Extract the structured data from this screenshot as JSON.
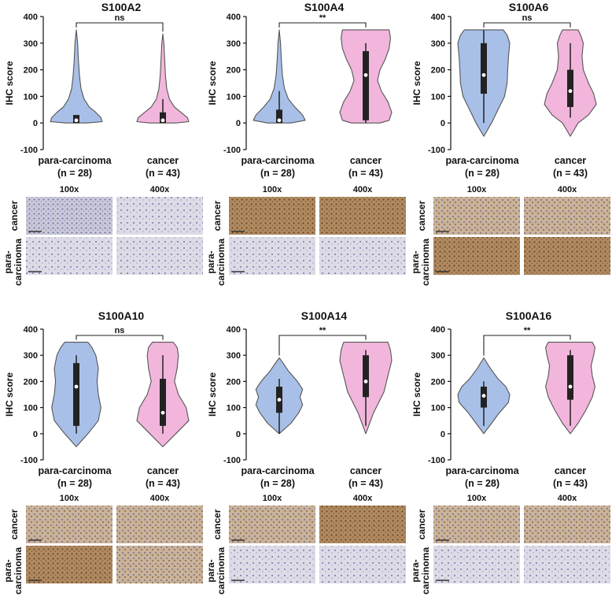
{
  "colors": {
    "para_fill": "#a8c0e8",
    "cancer_fill": "#f2b6dc",
    "outline": "#555555",
    "box": "#222222",
    "median": "#ffffff"
  },
  "image_labels": {
    "col_100": "100x",
    "col_400": "400x",
    "row_cancer": "cancer",
    "row_para_1": "para-",
    "row_para_2": "carcinoma"
  },
  "chart_data": [
    {
      "type": "violin",
      "title": "S100A2",
      "significance": "ns",
      "ylabel": "IHC score",
      "ylim": [
        -100,
        400
      ],
      "yticks": [
        -100,
        0,
        100,
        200,
        300,
        400
      ],
      "categories": [
        "para-carcinoma",
        "cancer"
      ],
      "category_n": [
        "(n = 28)",
        "(n = 43)"
      ],
      "violins": [
        {
          "name": "para-carcinoma",
          "min": 0,
          "max": 350,
          "q1": 0,
          "median": 10,
          "q3": 30,
          "whisker_low": 0,
          "whisker_high": 30,
          "density": [
            [
              0,
              0.4
            ],
            [
              5,
              1.0
            ],
            [
              20,
              0.95
            ],
            [
              40,
              0.75
            ],
            [
              60,
              0.5
            ],
            [
              90,
              0.3
            ],
            [
              130,
              0.18
            ],
            [
              180,
              0.12
            ],
            [
              240,
              0.08
            ],
            [
              300,
              0.05
            ],
            [
              350,
              0.0
            ]
          ]
        },
        {
          "name": "cancer",
          "min": 0,
          "max": 335,
          "q1": 0,
          "median": 10,
          "q3": 40,
          "whisker_low": 0,
          "whisker_high": 90,
          "density": [
            [
              0,
              0.5
            ],
            [
              5,
              1.0
            ],
            [
              20,
              0.95
            ],
            [
              40,
              0.7
            ],
            [
              60,
              0.45
            ],
            [
              90,
              0.25
            ],
            [
              130,
              0.15
            ],
            [
              180,
              0.1
            ],
            [
              240,
              0.07
            ],
            [
              300,
              0.04
            ],
            [
              335,
              0.0
            ]
          ]
        }
      ]
    },
    {
      "type": "violin",
      "title": "S100A4",
      "significance": "**",
      "ylabel": "IHC score",
      "ylim": [
        -100,
        400
      ],
      "yticks": [
        -100,
        0,
        100,
        200,
        300,
        400
      ],
      "categories": [
        "para-carcinoma",
        "cancer"
      ],
      "category_n": [
        "(n = 28)",
        "(n = 43)"
      ],
      "violins": [
        {
          "name": "para-carcinoma",
          "min": 0,
          "max": 350,
          "q1": 0,
          "median": 10,
          "q3": 50,
          "whisker_low": 0,
          "whisker_high": 120,
          "density": [
            [
              0,
              0.45
            ],
            [
              10,
              1.0
            ],
            [
              30,
              0.9
            ],
            [
              60,
              0.6
            ],
            [
              90,
              0.35
            ],
            [
              130,
              0.2
            ],
            [
              180,
              0.12
            ],
            [
              240,
              0.08
            ],
            [
              300,
              0.05
            ],
            [
              350,
              0.0
            ]
          ]
        },
        {
          "name": "cancer",
          "min": 0,
          "max": 350,
          "q1": 10,
          "median": 180,
          "q3": 270,
          "whisker_low": 0,
          "whisker_high": 300,
          "density": [
            [
              0,
              0.55
            ],
            [
              10,
              0.9
            ],
            [
              40,
              1.0
            ],
            [
              80,
              0.85
            ],
            [
              120,
              0.6
            ],
            [
              160,
              0.45
            ],
            [
              200,
              0.55
            ],
            [
              240,
              0.75
            ],
            [
              280,
              0.9
            ],
            [
              320,
              0.95
            ],
            [
              350,
              0.9
            ]
          ]
        }
      ]
    },
    {
      "type": "violin",
      "title": "S100A6",
      "significance": "ns",
      "ylabel": "IHC score",
      "ylim": [
        -100,
        400
      ],
      "yticks": [
        -100,
        0,
        100,
        200,
        300,
        400
      ],
      "categories": [
        "para-carcinoma",
        "cancer"
      ],
      "category_n": [
        "(n = 28)",
        "(n = 43)"
      ],
      "violins": [
        {
          "name": "para-carcinoma",
          "min": -50,
          "max": 350,
          "q1": 110,
          "median": 180,
          "q3": 300,
          "whisker_low": 0,
          "whisker_high": 350,
          "density": [
            [
              -50,
              0.0
            ],
            [
              0,
              0.3
            ],
            [
              50,
              0.55
            ],
            [
              100,
              0.8
            ],
            [
              150,
              0.9
            ],
            [
              200,
              0.92
            ],
            [
              250,
              0.95
            ],
            [
              300,
              1.0
            ],
            [
              330,
              0.9
            ],
            [
              350,
              0.75
            ]
          ]
        },
        {
          "name": "cancer",
          "min": -50,
          "max": 350,
          "q1": 60,
          "median": 120,
          "q3": 200,
          "whisker_low": 20,
          "whisker_high": 300,
          "density": [
            [
              -50,
              0.0
            ],
            [
              0,
              0.3
            ],
            [
              30,
              0.7
            ],
            [
              70,
              1.0
            ],
            [
              110,
              0.9
            ],
            [
              150,
              0.7
            ],
            [
              200,
              0.5
            ],
            [
              250,
              0.45
            ],
            [
              300,
              0.5
            ],
            [
              330,
              0.4
            ],
            [
              350,
              0.3
            ]
          ]
        }
      ]
    },
    {
      "type": "violin",
      "title": "S100A10",
      "significance": "ns",
      "ylabel": "IHC score",
      "ylim": [
        -100,
        400
      ],
      "yticks": [
        -100,
        0,
        100,
        200,
        300,
        400
      ],
      "categories": [
        "para-carcinoma",
        "cancer"
      ],
      "category_n": [
        "(n = 28)",
        "(n = 43)"
      ],
      "violins": [
        {
          "name": "para-carcinoma",
          "min": -50,
          "max": 350,
          "q1": 30,
          "median": 180,
          "q3": 270,
          "whisker_low": 0,
          "whisker_high": 300,
          "density": [
            [
              -50,
              0.0
            ],
            [
              0,
              0.45
            ],
            [
              50,
              0.85
            ],
            [
              100,
              0.95
            ],
            [
              150,
              0.85
            ],
            [
              200,
              0.8
            ],
            [
              250,
              0.85
            ],
            [
              300,
              0.75
            ],
            [
              330,
              0.6
            ],
            [
              350,
              0.45
            ]
          ]
        },
        {
          "name": "cancer",
          "min": -50,
          "max": 350,
          "q1": 30,
          "median": 80,
          "q3": 210,
          "whisker_low": 0,
          "whisker_high": 300,
          "density": [
            [
              -50,
              0.0
            ],
            [
              0,
              0.5
            ],
            [
              50,
              1.0
            ],
            [
              100,
              0.9
            ],
            [
              150,
              0.6
            ],
            [
              200,
              0.45
            ],
            [
              250,
              0.55
            ],
            [
              300,
              0.6
            ],
            [
              330,
              0.55
            ],
            [
              350,
              0.4
            ]
          ]
        }
      ]
    },
    {
      "type": "violin",
      "title": "S100A14",
      "significance": "**",
      "ylabel": "IHC score",
      "ylim": [
        -100,
        400
      ],
      "yticks": [
        -100,
        0,
        100,
        200,
        300,
        400
      ],
      "categories": [
        "para-carcinoma",
        "cancer"
      ],
      "category_n": [
        "(n = 28)",
        "(n = 43)"
      ],
      "violins": [
        {
          "name": "para-carcinoma",
          "min": 0,
          "max": 290,
          "q1": 80,
          "median": 130,
          "q3": 180,
          "whisker_low": 0,
          "whisker_high": 210,
          "density": [
            [
              0,
              0.0
            ],
            [
              40,
              0.45
            ],
            [
              80,
              0.75
            ],
            [
              110,
              0.9
            ],
            [
              140,
              0.8
            ],
            [
              170,
              0.9
            ],
            [
              200,
              0.7
            ],
            [
              240,
              0.35
            ],
            [
              270,
              0.15
            ],
            [
              290,
              0.0
            ]
          ]
        },
        {
          "name": "cancer",
          "min": 0,
          "max": 350,
          "q1": 140,
          "median": 200,
          "q3": 300,
          "whisker_low": 30,
          "whisker_high": 320,
          "density": [
            [
              0,
              0.0
            ],
            [
              40,
              0.15
            ],
            [
              80,
              0.3
            ],
            [
              120,
              0.5
            ],
            [
              160,
              0.7
            ],
            [
              200,
              0.8
            ],
            [
              240,
              0.9
            ],
            [
              280,
              1.0
            ],
            [
              320,
              0.95
            ],
            [
              350,
              0.85
            ]
          ]
        }
      ]
    },
    {
      "type": "violin",
      "title": "S100A16",
      "significance": "**",
      "ylabel": "IHC score",
      "ylim": [
        -100,
        400
      ],
      "yticks": [
        -100,
        0,
        100,
        200,
        300,
        400
      ],
      "categories": [
        "para-carcinoma",
        "cancer"
      ],
      "category_n": [
        "(n = 28)",
        "(n = 43)"
      ],
      "violins": [
        {
          "name": "para-carcinoma",
          "min": 0,
          "max": 290,
          "q1": 100,
          "median": 145,
          "q3": 180,
          "whisker_low": 30,
          "whisker_high": 200,
          "density": [
            [
              0,
              0.0
            ],
            [
              40,
              0.3
            ],
            [
              80,
              0.6
            ],
            [
              120,
              0.95
            ],
            [
              150,
              1.0
            ],
            [
              180,
              0.85
            ],
            [
              210,
              0.55
            ],
            [
              250,
              0.25
            ],
            [
              290,
              0.0
            ]
          ]
        },
        {
          "name": "cancer",
          "min": 0,
          "max": 350,
          "q1": 130,
          "median": 180,
          "q3": 300,
          "whisker_low": 30,
          "whisker_high": 320,
          "density": [
            [
              0,
              0.0
            ],
            [
              40,
              0.3
            ],
            [
              90,
              0.6
            ],
            [
              140,
              0.85
            ],
            [
              180,
              0.95
            ],
            [
              220,
              0.85
            ],
            [
              260,
              0.8
            ],
            [
              300,
              0.9
            ],
            [
              330,
              0.95
            ],
            [
              350,
              0.85
            ]
          ]
        }
      ]
    }
  ]
}
